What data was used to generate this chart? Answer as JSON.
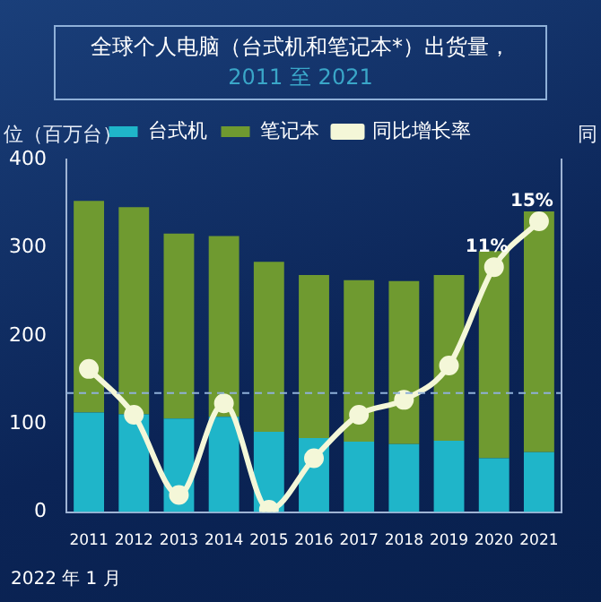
{
  "chart_data": {
    "type": "bar",
    "title": "全球个人电脑（台式机和笔记本*）出货量，",
    "subtitle": "2011 至 2021",
    "ylabel": "位（百万台）",
    "y2label": "同",
    "categories": [
      "2011",
      "2012",
      "2013",
      "2014",
      "2015",
      "2016",
      "2017",
      "2018",
      "2019",
      "2020",
      "2021"
    ],
    "stacked": true,
    "series": [
      {
        "name": "台式机",
        "color": "#1fb5c9",
        "values": [
          113,
          111,
          106,
          108,
          91,
          84,
          80,
          77,
          81,
          61,
          68
        ]
      },
      {
        "name": "笔记本",
        "color": "#6f9a30",
        "values": [
          240,
          235,
          210,
          205,
          193,
          185,
          183,
          185,
          188,
          235,
          273
        ]
      },
      {
        "name": "同比增长率",
        "type": "line",
        "axis": "y2",
        "color": "#f4f7d8",
        "marker": "circle",
        "values": [
          2.1,
          -1.9,
          -8.9,
          -0.9,
          -10.2,
          -5.7,
          -1.9,
          -0.6,
          2.4,
          11,
          15
        ],
        "value_labels": [
          null,
          null,
          null,
          null,
          null,
          null,
          null,
          null,
          null,
          "11%",
          "15%"
        ]
      }
    ],
    "ylim": [
      0,
      400
    ],
    "yticks": [
      0,
      100,
      200,
      300,
      400
    ],
    "y2lim": [
      -10.4,
      20.4
    ],
    "ref_lines": [
      {
        "axis": "y2",
        "value": 0,
        "color": "#8fb0d8",
        "line_style": "dashed"
      }
    ],
    "legend": "top",
    "grid": false,
    "annotations": [
      "2022 年 1 月"
    ]
  }
}
